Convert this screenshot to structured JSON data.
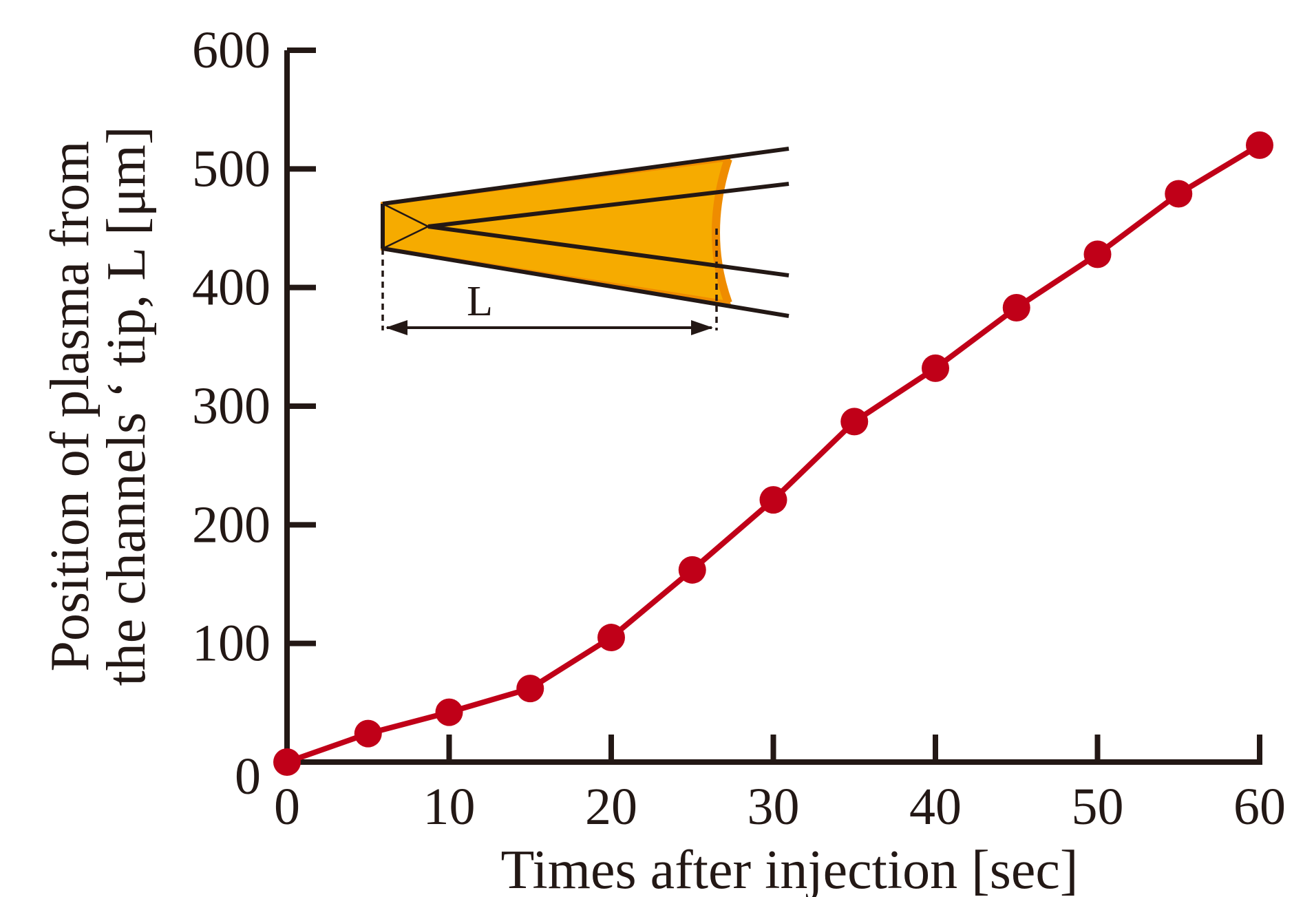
{
  "chart_data": {
    "type": "line",
    "xlabel": "Times after injection [sec]",
    "ylabel_lines": [
      "Position of plasma from",
      "the channels ‘ tip, L [μm]"
    ],
    "xlim": [
      0,
      60
    ],
    "ylim": [
      0,
      600
    ],
    "xticks": [
      0,
      10,
      20,
      30,
      40,
      50,
      60
    ],
    "yticks": [
      0,
      100,
      200,
      300,
      400,
      500,
      600
    ],
    "grid": false,
    "series": [
      {
        "x": [
          0,
          5,
          10,
          15,
          20,
          25,
          30,
          35,
          40,
          45,
          50,
          55,
          60
        ],
        "y": [
          0,
          24,
          42,
          62,
          105,
          162,
          221,
          287,
          332,
          383,
          428,
          479,
          520
        ]
      }
    ],
    "inset": {
      "label": "L"
    },
    "colors": {
      "series": "#c00018",
      "axis": "#231815",
      "fill": "#f6ab00",
      "fill_edge": "#ef8c00"
    }
  }
}
